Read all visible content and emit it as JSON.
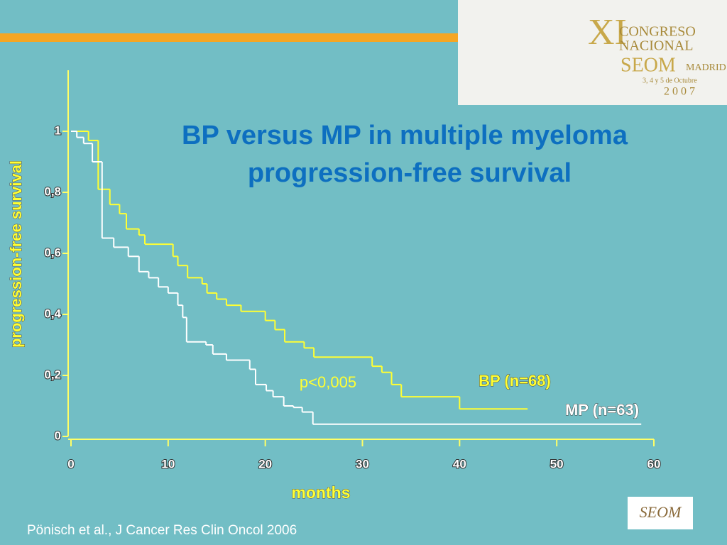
{
  "logo": {
    "lines": [
      "XI",
      "CONGRESO",
      "NACIONAL",
      "SEOM",
      "MADRID",
      "3, 4 y 5 de Octubre",
      "2007"
    ]
  },
  "footer_logo": "SEOM",
  "citation": "Pönisch et al., J Cancer Res Clin Oncol 2006",
  "chart_data": {
    "type": "step",
    "title": "BP versus MP  in multiple myeloma",
    "subtitle": "progression-free survival",
    "y_label": "progression-free survival",
    "x_label": "months",
    "annotation": "p<0,005",
    "xlim": [
      0,
      60
    ],
    "ylim": [
      0,
      1.2
    ],
    "xticks": [
      0,
      10,
      20,
      30,
      40,
      50,
      60
    ],
    "yticks": [
      0,
      {
        "value": 0.2,
        "label": "0,2"
      },
      {
        "value": 0.4,
        "label": "0,4"
      },
      {
        "value": 0.6,
        "label": "0,6"
      },
      {
        "value": 0.8,
        "label": "0,8"
      },
      1
    ],
    "series": [
      {
        "name": "BP (n=68)",
        "color": "#ffff33",
        "x": [
          0,
          1.8,
          2.8,
          4,
          5,
          5.7,
          7,
          7.6,
          10.5,
          11,
          12,
          13.5,
          14,
          15,
          16,
          17.5,
          20,
          21,
          22,
          24,
          25,
          31,
          32,
          33,
          34,
          40,
          47
        ],
        "y": [
          1,
          0.97,
          0.81,
          0.76,
          0.73,
          0.68,
          0.66,
          0.63,
          0.59,
          0.56,
          0.52,
          0.5,
          0.47,
          0.45,
          0.43,
          0.41,
          0.38,
          0.35,
          0.31,
          0.29,
          0.26,
          0.23,
          0.21,
          0.17,
          0.13,
          0.09,
          0.09
        ]
      },
      {
        "name": "MP (n=63)",
        "color": "#ffffff",
        "x": [
          0,
          0.6,
          1.3,
          2.2,
          3.2,
          4.4,
          5.9,
          7,
          8,
          9,
          10,
          11,
          11.5,
          11.9,
          13.9,
          14.6,
          16,
          18.4,
          19,
          20.1,
          20.8,
          21.9,
          22.9,
          23.8,
          24.9,
          58.7
        ],
        "y": [
          1,
          0.98,
          0.96,
          0.9,
          0.65,
          0.62,
          0.59,
          0.54,
          0.52,
          0.49,
          0.47,
          0.43,
          0.39,
          0.31,
          0.3,
          0.27,
          0.25,
          0.22,
          0.17,
          0.15,
          0.13,
          0.1,
          0.095,
          0.08,
          0.04,
          0.04
        ]
      }
    ]
  }
}
